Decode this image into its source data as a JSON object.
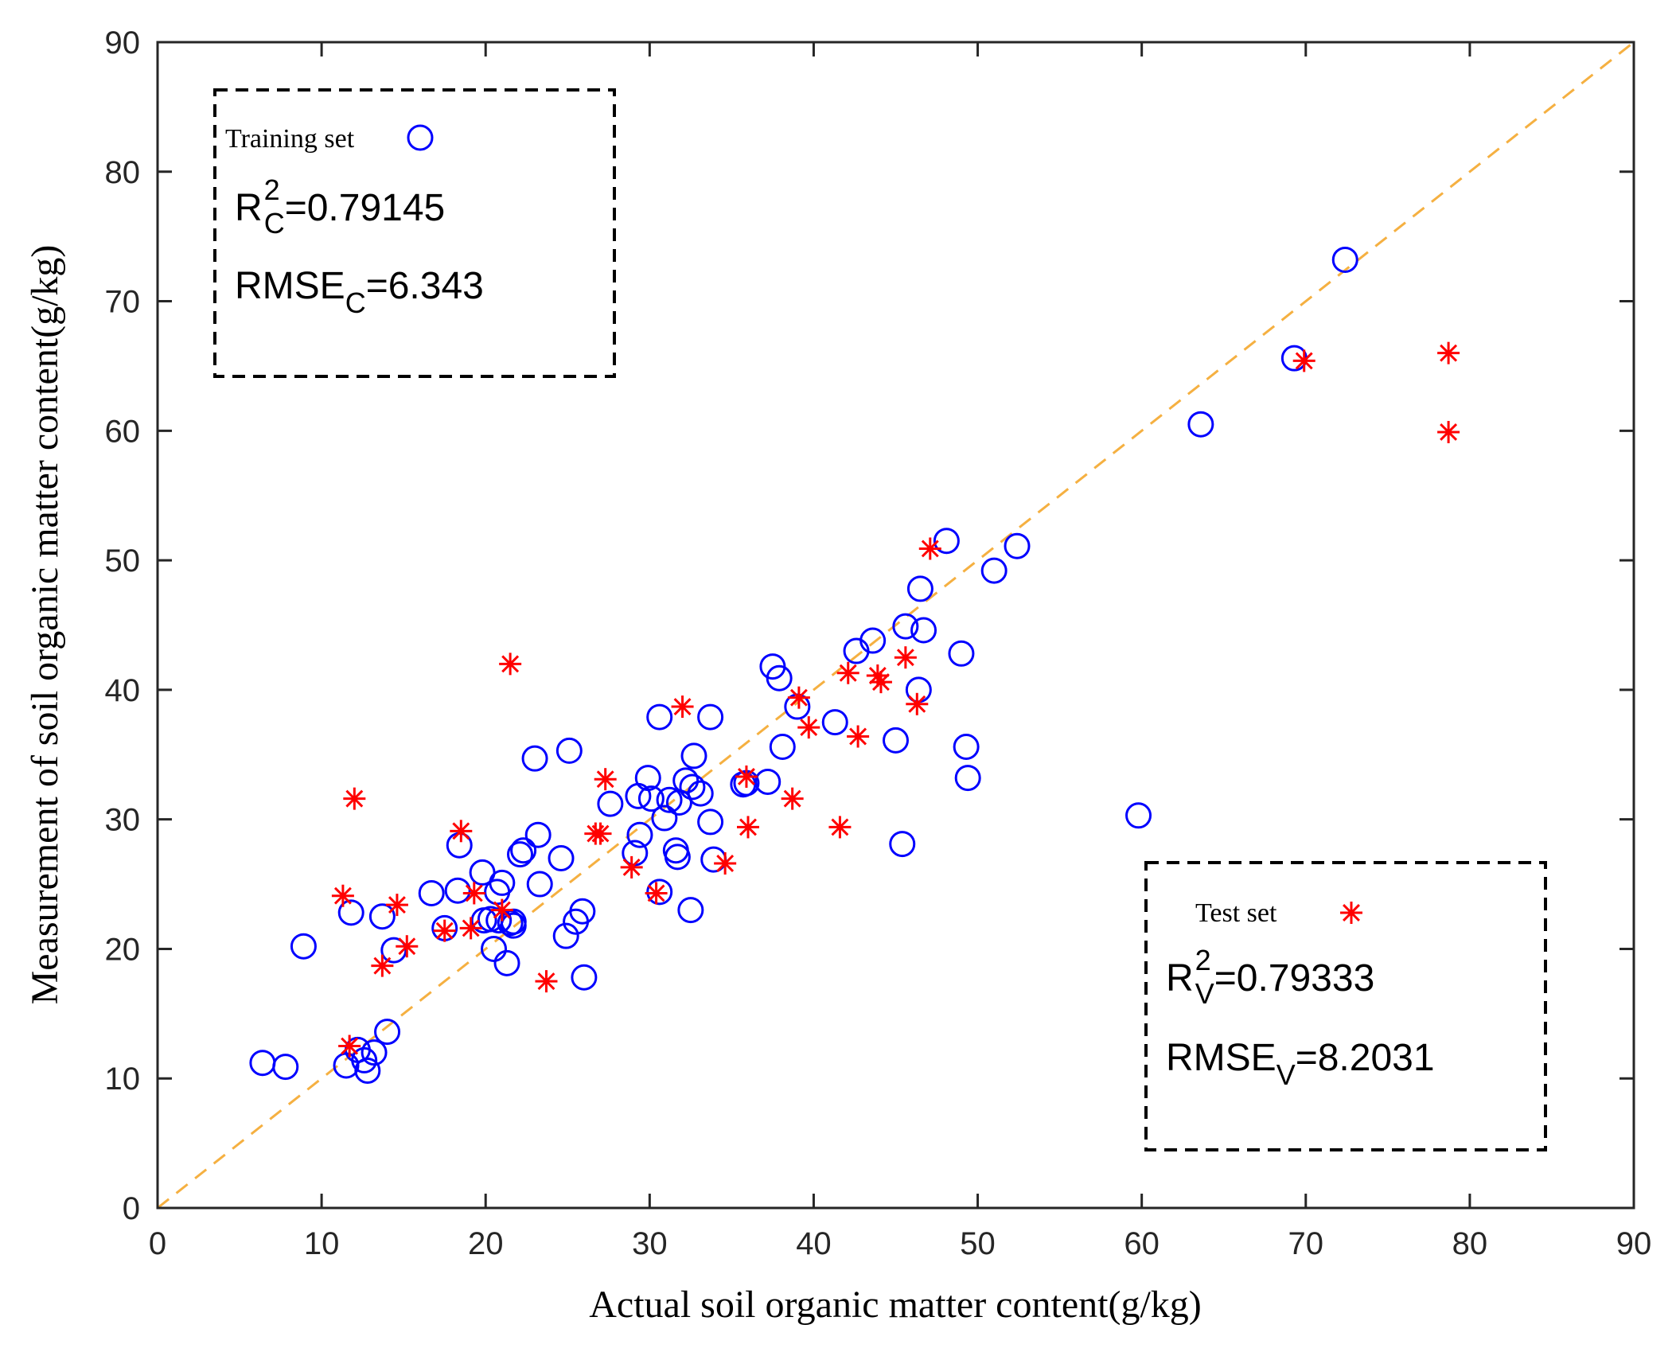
{
  "chart_data": {
    "type": "scatter",
    "title": "",
    "xlabel": "Actual soil organic matter content(g/kg)",
    "ylabel": "Measurement of soil organic matter content(g/kg)",
    "xlim": [
      0,
      90
    ],
    "ylim": [
      0,
      90
    ],
    "xticks": [
      "0",
      "10",
      "20",
      "30",
      "40",
      "50",
      "60",
      "70",
      "80",
      "90"
    ],
    "yticks": [
      "0",
      "10",
      "20",
      "30",
      "40",
      "50",
      "60",
      "70",
      "80",
      "90"
    ],
    "grid": false,
    "reference_line": {
      "name": "1:1 line",
      "from": [
        0,
        0
      ],
      "to": [
        90,
        90
      ],
      "color": "#F5B041",
      "style": "dashed"
    },
    "series": [
      {
        "name": "Training set",
        "marker": "circle",
        "color": "#0000FF",
        "r2_label": "R",
        "r2_sup": "2",
        "r2_sub": "C",
        "r2_value": "=0.79145",
        "rmse_label": "RMSE",
        "rmse_sub": "C",
        "rmse_value": "=6.343",
        "points": [
          [
            6.4,
            11.2
          ],
          [
            7.8,
            10.9
          ],
          [
            8.9,
            20.2
          ],
          [
            11.5,
            11.0
          ],
          [
            11.8,
            22.8
          ],
          [
            12.2,
            12.2
          ],
          [
            12.6,
            11.4
          ],
          [
            12.8,
            10.6
          ],
          [
            13.2,
            12.0
          ],
          [
            13.7,
            22.5
          ],
          [
            14.0,
            13.6
          ],
          [
            14.4,
            19.9
          ],
          [
            16.7,
            24.3
          ],
          [
            17.5,
            21.6
          ],
          [
            18.3,
            24.5
          ],
          [
            18.4,
            28.0
          ],
          [
            19.8,
            25.9
          ],
          [
            19.9,
            22.2
          ],
          [
            20.3,
            22.3
          ],
          [
            20.5,
            20.0
          ],
          [
            20.7,
            24.4
          ],
          [
            20.8,
            22.2
          ],
          [
            21.0,
            25.1
          ],
          [
            21.3,
            18.9
          ],
          [
            21.5,
            22.0
          ],
          [
            21.7,
            22.1
          ],
          [
            21.7,
            21.8
          ],
          [
            22.1,
            27.3
          ],
          [
            22.3,
            27.6
          ],
          [
            23.0,
            34.7
          ],
          [
            23.2,
            28.8
          ],
          [
            23.3,
            25.0
          ],
          [
            24.6,
            27.0
          ],
          [
            24.9,
            21.0
          ],
          [
            25.1,
            35.3
          ],
          [
            25.5,
            22.1
          ],
          [
            25.9,
            22.9
          ],
          [
            26.0,
            17.8
          ],
          [
            27.6,
            31.2
          ],
          [
            29.1,
            27.4
          ],
          [
            29.3,
            31.8
          ],
          [
            29.4,
            28.8
          ],
          [
            29.9,
            33.2
          ],
          [
            30.1,
            31.6
          ],
          [
            30.6,
            37.9
          ],
          [
            30.6,
            24.4
          ],
          [
            30.9,
            30.1
          ],
          [
            31.2,
            31.5
          ],
          [
            31.6,
            27.6
          ],
          [
            31.7,
            27.1
          ],
          [
            31.8,
            31.3
          ],
          [
            32.2,
            33.0
          ],
          [
            32.5,
            23.0
          ],
          [
            32.6,
            32.5
          ],
          [
            32.7,
            34.9
          ],
          [
            33.1,
            32.0
          ],
          [
            33.7,
            37.9
          ],
          [
            33.7,
            29.8
          ],
          [
            33.9,
            26.9
          ],
          [
            35.7,
            32.7
          ],
          [
            35.9,
            32.8
          ],
          [
            37.2,
            32.9
          ],
          [
            37.5,
            41.8
          ],
          [
            37.9,
            40.9
          ],
          [
            38.1,
            35.6
          ],
          [
            39.0,
            38.7
          ],
          [
            41.3,
            37.5
          ],
          [
            42.6,
            43.0
          ],
          [
            43.6,
            43.8
          ],
          [
            45.0,
            36.1
          ],
          [
            45.4,
            28.1
          ],
          [
            45.6,
            44.9
          ],
          [
            46.4,
            40.0
          ],
          [
            46.5,
            47.8
          ],
          [
            46.7,
            44.6
          ],
          [
            48.1,
            51.5
          ],
          [
            49.0,
            42.8
          ],
          [
            49.3,
            35.6
          ],
          [
            49.4,
            33.2
          ],
          [
            51.0,
            49.2
          ],
          [
            52.4,
            51.1
          ],
          [
            59.8,
            30.3
          ],
          [
            63.6,
            60.5
          ],
          [
            69.3,
            65.6
          ],
          [
            72.4,
            73.2
          ]
        ]
      },
      {
        "name": "Test set",
        "marker": "asterisk",
        "color": "#FF0000",
        "r2_label": "R",
        "r2_sup": "2",
        "r2_sub": "V",
        "r2_value": "=0.79333",
        "rmse_label": "RMSE",
        "rmse_sub": "V",
        "rmse_value": "=8.2031",
        "points": [
          [
            11.3,
            24.1
          ],
          [
            11.7,
            12.5
          ],
          [
            12.0,
            31.6
          ],
          [
            13.7,
            18.7
          ],
          [
            14.6,
            23.4
          ],
          [
            15.2,
            20.2
          ],
          [
            17.5,
            21.4
          ],
          [
            18.5,
            29.1
          ],
          [
            19.1,
            21.6
          ],
          [
            19.3,
            24.3
          ],
          [
            21.0,
            23.0
          ],
          [
            21.5,
            42.0
          ],
          [
            23.7,
            17.5
          ],
          [
            26.7,
            28.9
          ],
          [
            27.0,
            28.9
          ],
          [
            27.3,
            33.1
          ],
          [
            28.9,
            26.3
          ],
          [
            30.4,
            24.3
          ],
          [
            32.0,
            38.7
          ],
          [
            34.6,
            26.6
          ],
          [
            35.9,
            33.3
          ],
          [
            36.0,
            29.4
          ],
          [
            38.7,
            31.6
          ],
          [
            39.1,
            39.4
          ],
          [
            39.7,
            37.1
          ],
          [
            41.6,
            29.4
          ],
          [
            42.1,
            41.3
          ],
          [
            42.7,
            36.4
          ],
          [
            43.9,
            41.1
          ],
          [
            44.1,
            40.6
          ],
          [
            45.6,
            42.5
          ],
          [
            46.3,
            38.9
          ],
          [
            47.1,
            50.9
          ],
          [
            69.9,
            65.4
          ],
          [
            78.7,
            66.0
          ],
          [
            78.7,
            59.9
          ]
        ]
      }
    ]
  }
}
